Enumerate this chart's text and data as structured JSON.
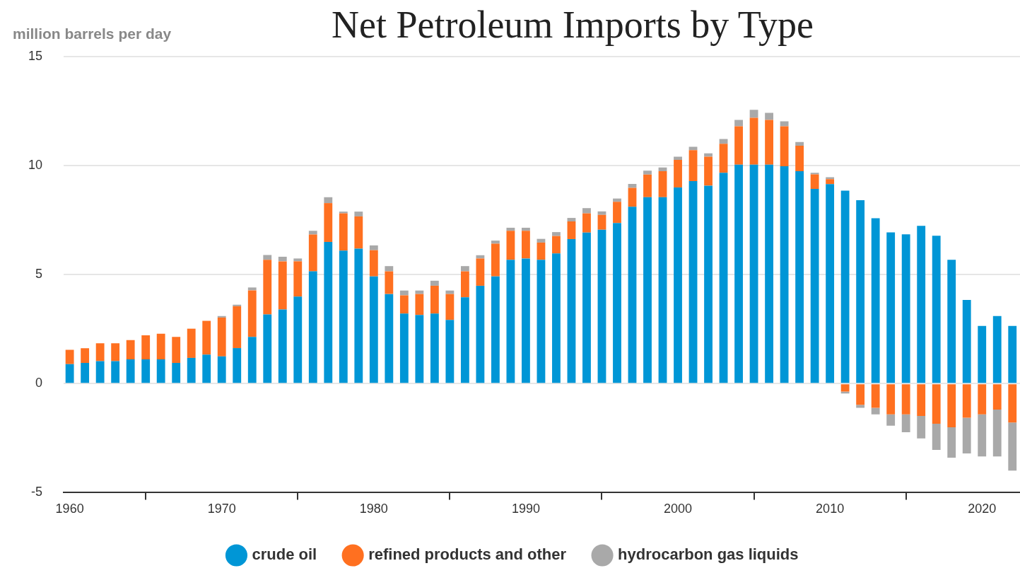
{
  "chart_data": {
    "type": "bar",
    "title": "Net Petroleum Imports by Type",
    "ylabel": "million barrels per day",
    "x": [
      1960,
      1961,
      1962,
      1963,
      1964,
      1965,
      1966,
      1967,
      1968,
      1969,
      1970,
      1971,
      1972,
      1973,
      1974,
      1975,
      1976,
      1977,
      1978,
      1979,
      1980,
      1981,
      1982,
      1983,
      1984,
      1985,
      1986,
      1987,
      1988,
      1989,
      1990,
      1991,
      1992,
      1993,
      1994,
      1995,
      1996,
      1997,
      1998,
      1999,
      2000,
      2001,
      2002,
      2003,
      2004,
      2005,
      2006,
      2007,
      2008,
      2009,
      2010,
      2011,
      2012,
      2013,
      2014,
      2015,
      2016,
      2017,
      2018,
      2019,
      2020,
      2021,
      2022
    ],
    "series": [
      {
        "name": "crude oil",
        "color": "#0096d6",
        "values": [
          0.89,
          0.95,
          1.03,
          1.03,
          1.11,
          1.11,
          1.11,
          0.95,
          1.18,
          1.33,
          1.25,
          1.63,
          2.14,
          3.17,
          3.4,
          3.99,
          5.15,
          6.5,
          6.1,
          6.19,
          4.92,
          4.11,
          3.21,
          3.15,
          3.21,
          2.92,
          3.96,
          4.49,
          4.92,
          5.68,
          5.74,
          5.68,
          5.97,
          6.63,
          6.93,
          7.06,
          7.37,
          8.11,
          8.55,
          8.55,
          9.0,
          9.29,
          9.08,
          9.67,
          10.04,
          10.04,
          10.04,
          9.97,
          9.74,
          8.93,
          9.15,
          8.85,
          8.41,
          7.59,
          6.94,
          6.85,
          7.24,
          6.78,
          5.68,
          3.84,
          2.65,
          3.1,
          2.65
        ]
      },
      {
        "name": "refined products and other",
        "color": "#ff7020",
        "values": [
          0.66,
          0.67,
          0.82,
          0.82,
          0.89,
          1.11,
          1.18,
          1.19,
          1.34,
          1.55,
          1.78,
          1.92,
          2.14,
          2.51,
          2.21,
          1.62,
          1.69,
          1.78,
          1.71,
          1.48,
          1.2,
          1.04,
          0.84,
          0.96,
          1.28,
          1.19,
          1.19,
          1.25,
          1.5,
          1.33,
          1.27,
          0.79,
          0.8,
          0.81,
          0.88,
          0.68,
          0.97,
          0.87,
          1.04,
          1.19,
          1.26,
          1.42,
          1.33,
          1.33,
          1.76,
          2.15,
          2.06,
          1.83,
          1.17,
          0.67,
          0.23,
          -0.36,
          -0.97,
          -1.11,
          -1.41,
          -1.41,
          -1.48,
          -1.84,
          -2.0,
          -1.56,
          -1.41,
          -1.19,
          -1.78
        ]
      },
      {
        "name": "hydrocarbon gas liquids",
        "color": "#a9a9a9",
        "values": [
          0,
          0,
          0,
          0,
          0,
          0,
          0,
          0,
          0,
          0,
          0.07,
          0.07,
          0.13,
          0.22,
          0.21,
          0.13,
          0.17,
          0.27,
          0.08,
          0.22,
          0.22,
          0.24,
          0.22,
          0.16,
          0.23,
          0.16,
          0.24,
          0.15,
          0.14,
          0.14,
          0.14,
          0.17,
          0.18,
          0.16,
          0.24,
          0.16,
          0.15,
          0.18,
          0.18,
          0.17,
          0.15,
          0.15,
          0.15,
          0.22,
          0.3,
          0.37,
          0.32,
          0.23,
          0.17,
          0.07,
          0.09,
          -0.09,
          -0.14,
          -0.3,
          -0.52,
          -0.82,
          -1.03,
          -1.2,
          -1.4,
          -1.64,
          -1.93,
          -2.15,
          -2.21
        ]
      }
    ],
    "stacked": true,
    "xlim": [
      1959.6,
      2022.5
    ],
    "xticks": [
      1960,
      1970,
      1980,
      1990,
      2000,
      2010,
      2020
    ],
    "ylim": [
      -5,
      15
    ],
    "yticks": [
      -5,
      0,
      5,
      10,
      15
    ],
    "grid": "y",
    "legend": "bottom"
  }
}
